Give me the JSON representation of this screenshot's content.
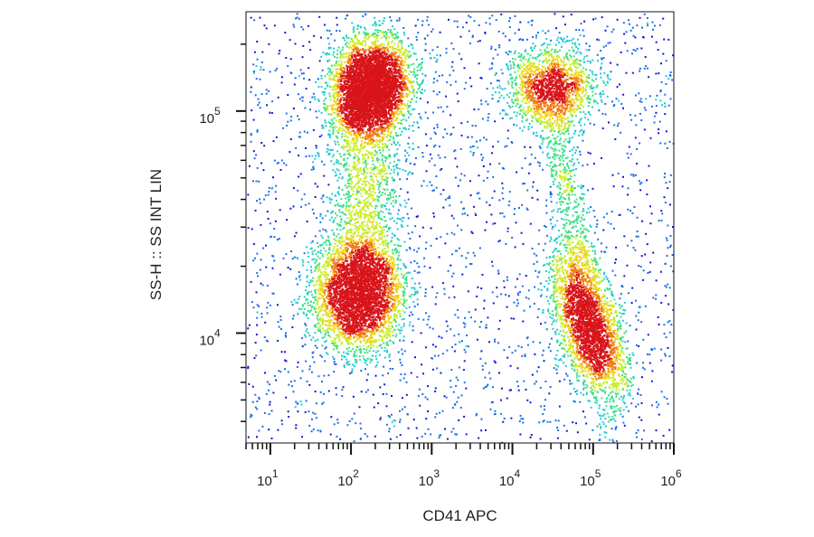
{
  "chart_data": {
    "type": "scatter",
    "title": "",
    "xlabel": "CD41 APC",
    "ylabel": "SS-H :: SS INT LIN",
    "xscale": "log",
    "yscale": "log",
    "xlim": [
      5,
      1000000
    ],
    "ylim": [
      3200,
      280000
    ],
    "x_ticks": [
      {
        "base": "10",
        "exp": "1"
      },
      {
        "base": "10",
        "exp": "2"
      },
      {
        "base": "10",
        "exp": "3"
      },
      {
        "base": "10",
        "exp": "4"
      },
      {
        "base": "10",
        "exp": "5"
      },
      {
        "base": "10",
        "exp": "6"
      }
    ],
    "y_ticks": [
      {
        "base": "10",
        "exp": "4"
      },
      {
        "base": "10",
        "exp": "5"
      }
    ],
    "grid": false,
    "legend": "none",
    "colormap": [
      "#1a12d8",
      "#1e6fe6",
      "#22c9d8",
      "#3fe08a",
      "#c8ee28",
      "#f0d21a",
      "#f07a14",
      "#d8141a"
    ],
    "populations": [
      {
        "x_center": 170,
        "y_center": 130000,
        "count": 4200
      },
      {
        "x_center": 120,
        "y_center": 15000,
        "count": 3600
      },
      {
        "x_center": 30000,
        "y_center": 130000,
        "count": 1500
      },
      {
        "x_center": 85000,
        "y_center": 11000,
        "count": 2800
      }
    ]
  }
}
